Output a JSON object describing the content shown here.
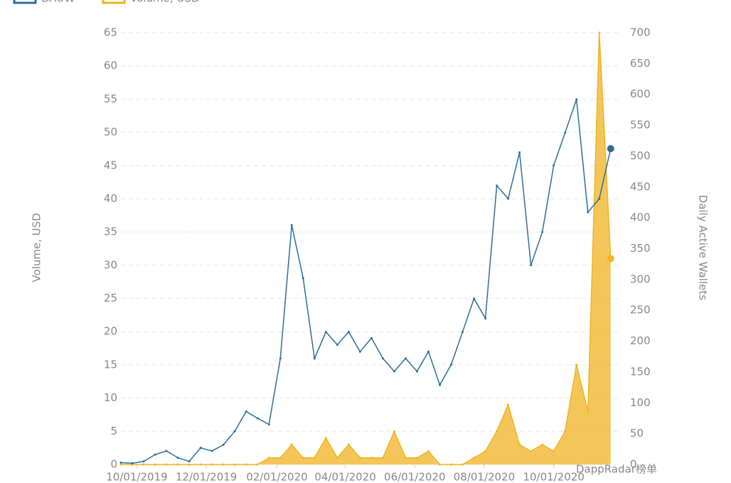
{
  "chart_data": {
    "type": "line",
    "legend": "top-left",
    "x": [
      "09/17/2019",
      "09/27/2019",
      "10/07/2019",
      "10/17/2019",
      "10/27/2019",
      "11/06/2019",
      "11/16/2019",
      "11/26/2019",
      "12/06/2019",
      "12/16/2019",
      "12/26/2019",
      "01/05/2020",
      "01/15/2020",
      "01/25/2020",
      "02/04/2020",
      "02/14/2020",
      "02/24/2020",
      "03/05/2020",
      "03/15/2020",
      "03/25/2020",
      "04/04/2020",
      "04/14/2020",
      "04/24/2020",
      "05/04/2020",
      "05/14/2020",
      "05/24/2020",
      "06/03/2020",
      "06/13/2020",
      "06/23/2020",
      "07/03/2020",
      "07/13/2020",
      "07/23/2020",
      "08/02/2020",
      "08/12/2020",
      "08/22/2020",
      "09/01/2020",
      "09/11/2020",
      "09/21/2020",
      "10/01/2020",
      "10/11/2020",
      "10/21/2020",
      "10/31/2020",
      "11/10/2020",
      "11/20/2020"
    ],
    "xlim": [
      "09/17/2019",
      "11/27/2020"
    ],
    "xticks": [
      "10/01/2019",
      "12/01/2019",
      "02/01/2020",
      "04/01/2020",
      "06/01/2020",
      "08/01/2020",
      "10/01/2020"
    ],
    "ylabel": "Volume, USD",
    "y2label": "Daily Active Wallets",
    "ylim": [
      0,
      65
    ],
    "yticks": [
      0,
      5,
      10,
      15,
      20,
      25,
      30,
      35,
      40,
      45,
      50,
      55,
      60,
      65
    ],
    "y2lim": [
      0,
      700
    ],
    "y2ticks": [
      0,
      50,
      100,
      150,
      200,
      250,
      300,
      350,
      400,
      450,
      500,
      550,
      600,
      650,
      700
    ],
    "grid": true,
    "series": [
      {
        "name": "DAUW",
        "color": "#2c6e99",
        "axis": "y2",
        "values": [
          3,
          2,
          5,
          16,
          22,
          11,
          5,
          27,
          22,
          32,
          54,
          86,
          75,
          65,
          172,
          388,
          302,
          172,
          215,
          194,
          215,
          183,
          205,
          172,
          151,
          172,
          151,
          183,
          129,
          162,
          215,
          269,
          237,
          452,
          431,
          506,
          323,
          377,
          485,
          538,
          592,
          409,
          431,
          512
        ]
      },
      {
        "name": "Volume, USD",
        "color": "#f0b323",
        "area": true,
        "values": [
          0,
          0,
          0,
          0,
          0,
          0,
          0,
          0,
          0,
          0,
          0,
          0,
          0,
          1,
          1,
          3,
          1,
          1,
          4,
          1,
          3,
          1,
          1,
          1,
          5,
          1,
          1,
          2,
          0,
          0,
          0,
          1,
          2,
          5,
          9,
          3,
          2,
          3,
          2,
          5,
          15,
          8,
          65,
          31
        ]
      }
    ]
  },
  "watermark": "DappRadar榜单"
}
